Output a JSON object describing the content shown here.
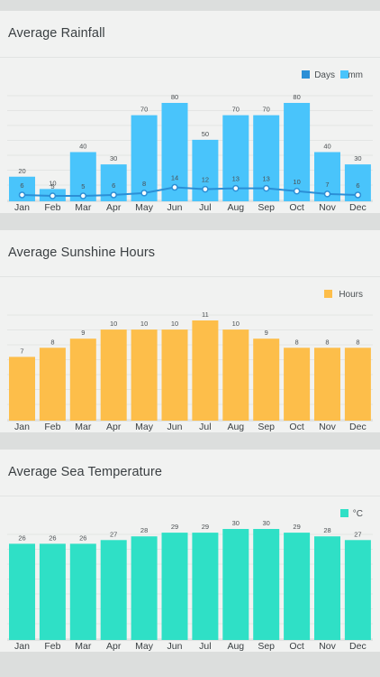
{
  "chart_data": [
    {
      "type": "bar",
      "title": "Average Rainfall",
      "categories": [
        "Jan",
        "Feb",
        "Mar",
        "Apr",
        "May",
        "Jun",
        "Jul",
        "Aug",
        "Sep",
        "Oct",
        "Nov",
        "Dec"
      ],
      "ylim": [
        0,
        80
      ],
      "legend": "top-right",
      "series": [
        {
          "name": "Days",
          "type": "line",
          "color": "#2b8fd6",
          "values": [
            6,
            5,
            5,
            6,
            8,
            14,
            12,
            13,
            13,
            10,
            7,
            6
          ]
        },
        {
          "name": "mm",
          "type": "bar",
          "color": "#49c4fb",
          "values": [
            20,
            10,
            40,
            30,
            70,
            80,
            50,
            70,
            70,
            80,
            40,
            30
          ]
        }
      ]
    },
    {
      "type": "bar",
      "title": "Average Sunshine Hours",
      "categories": [
        "Jan",
        "Feb",
        "Mar",
        "Apr",
        "May",
        "Jun",
        "Jul",
        "Aug",
        "Sep",
        "Oct",
        "Nov",
        "Dec"
      ],
      "ylim": [
        0,
        11
      ],
      "legend": "top-right",
      "series": [
        {
          "name": "Hours",
          "type": "bar",
          "color": "#fdbe4a",
          "values": [
            7,
            8,
            9,
            10,
            10,
            10,
            11,
            10,
            9,
            8,
            8,
            8
          ]
        }
      ]
    },
    {
      "type": "bar",
      "title": "Average Sea Temperature",
      "categories": [
        "Jan",
        "Feb",
        "Mar",
        "Apr",
        "May",
        "Jun",
        "Jul",
        "Aug",
        "Sep",
        "Oct",
        "Nov",
        "Dec"
      ],
      "ylim": [
        0,
        30
      ],
      "legend": "top-right",
      "series": [
        {
          "name": "°C",
          "type": "bar",
          "color": "#2fe0c6",
          "values": [
            26,
            26,
            26,
            27,
            28,
            29,
            29,
            30,
            30,
            29,
            28,
            27
          ]
        }
      ]
    }
  ]
}
